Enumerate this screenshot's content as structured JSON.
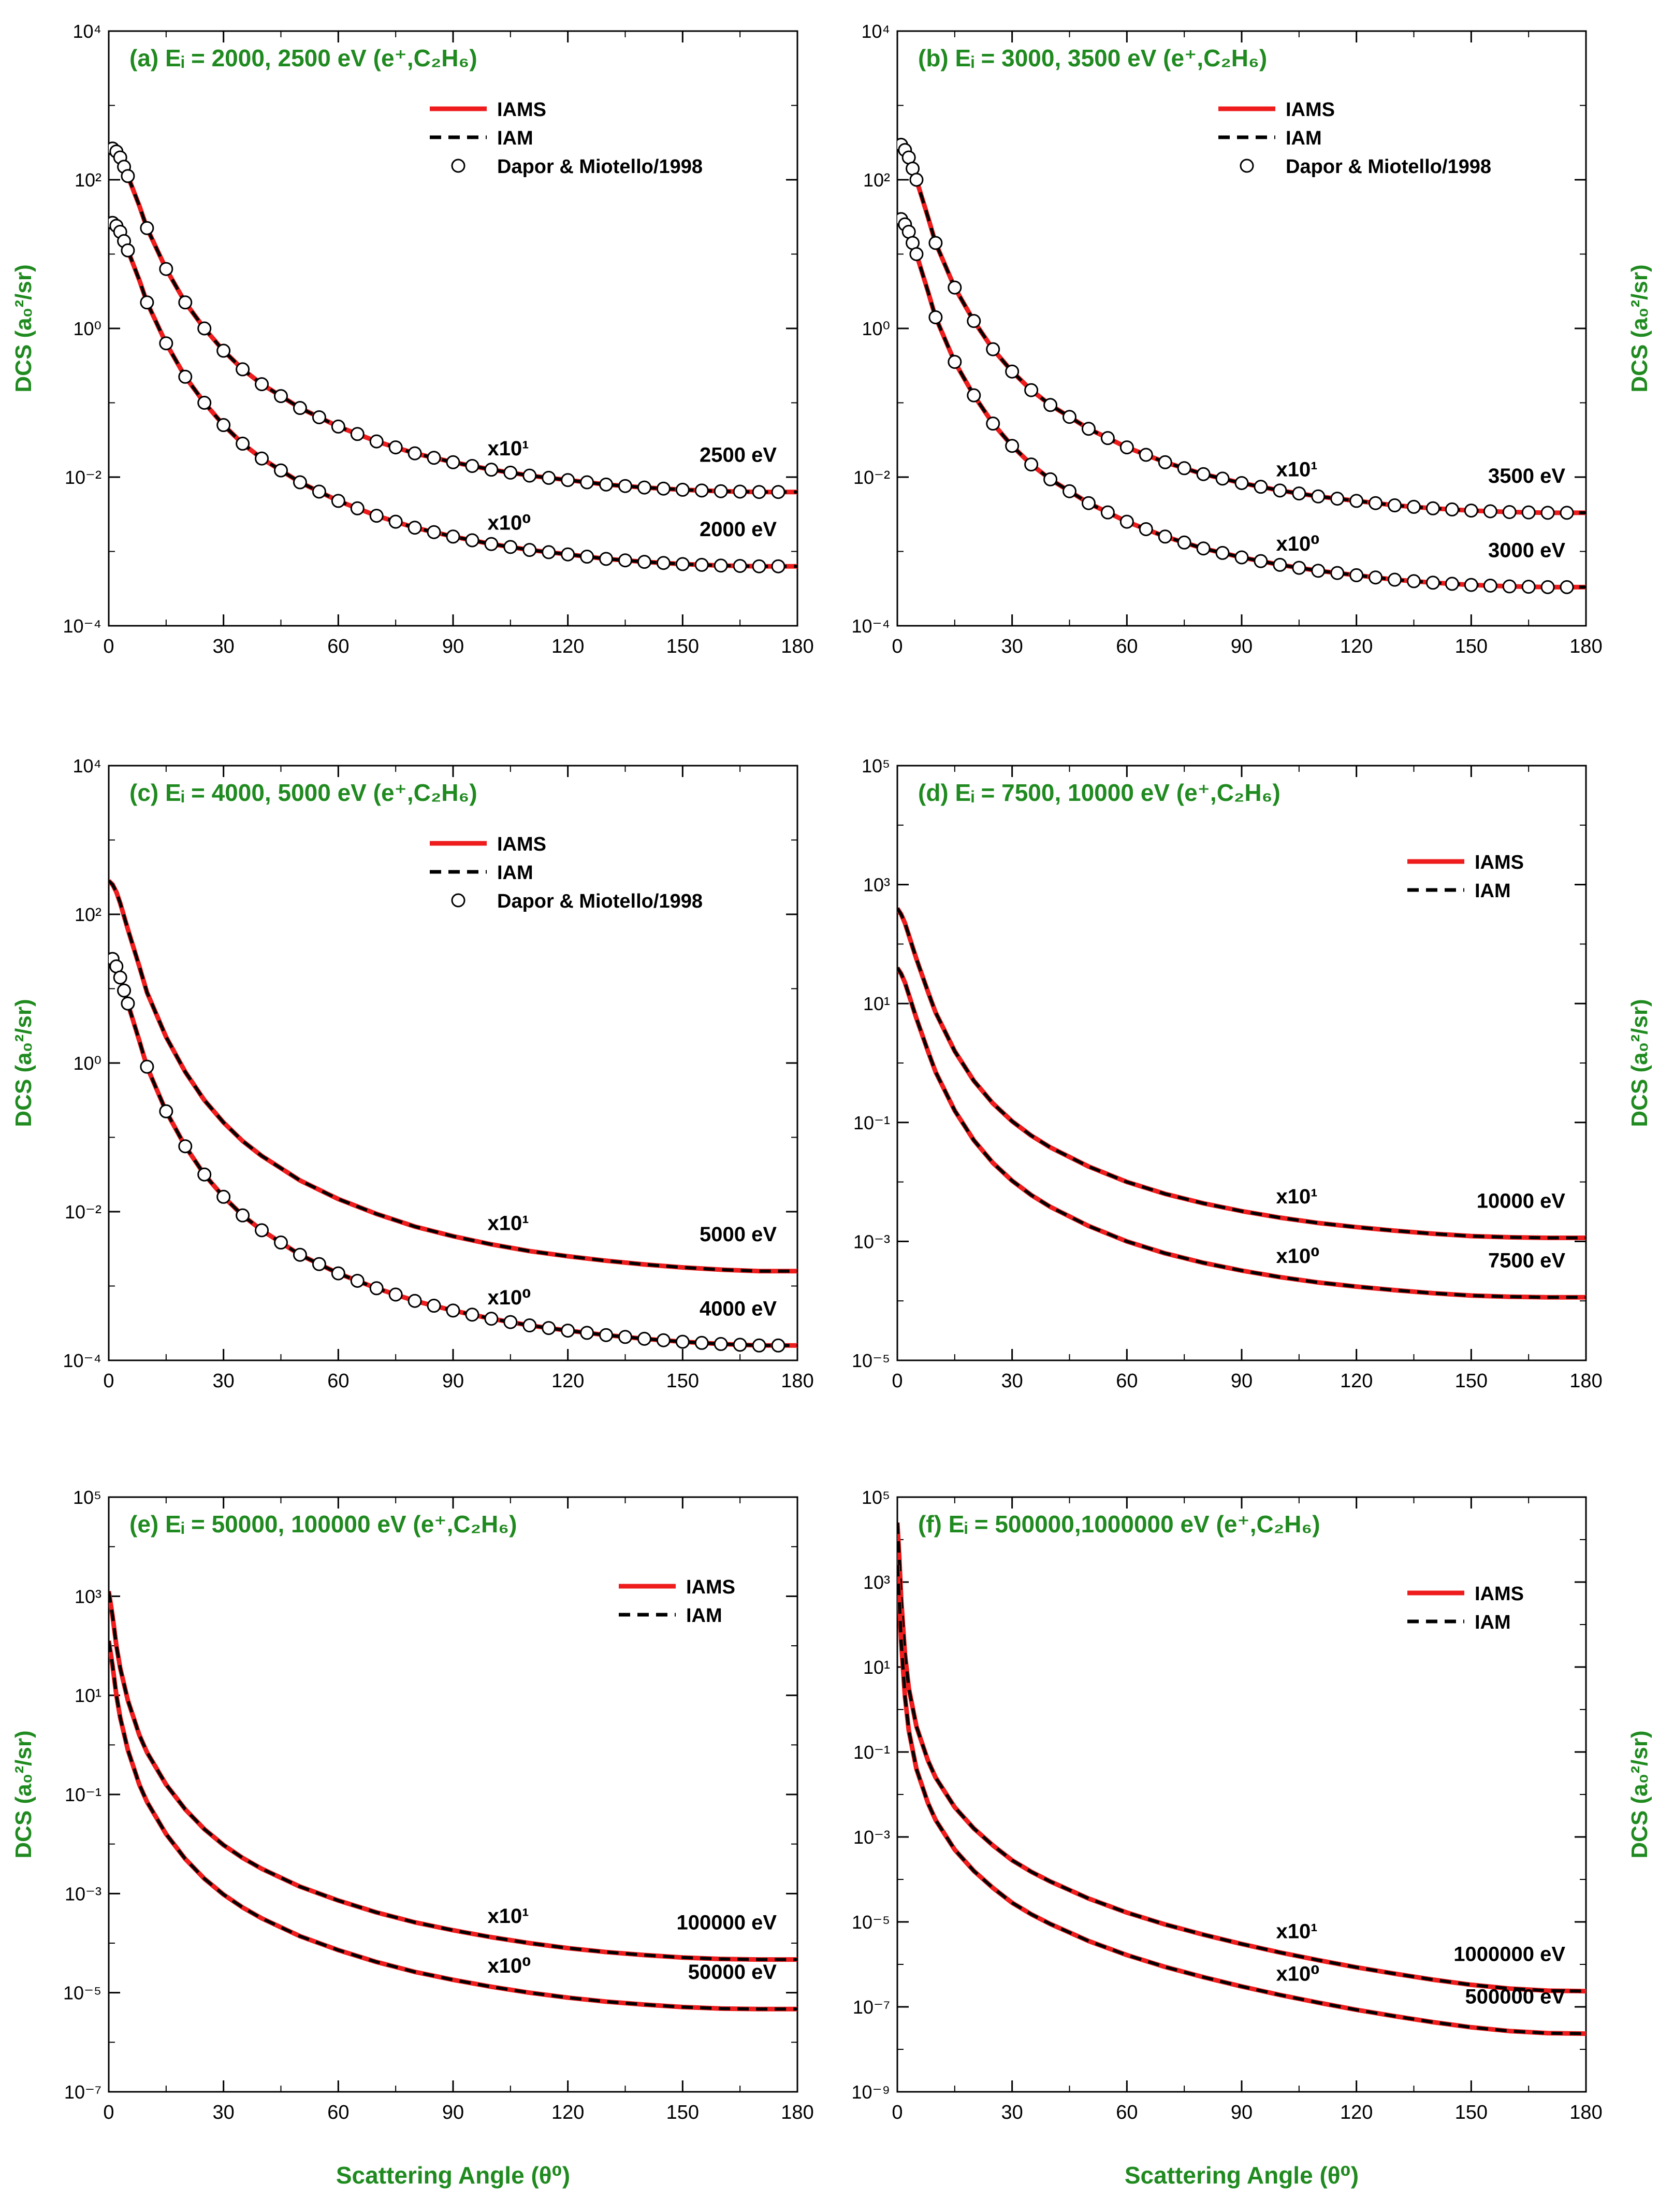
{
  "figure": {
    "common_ylabel": "DCS (a₀²/sr)",
    "common_xlabel": "Scattering Angle (θ⁰)",
    "colors": {
      "iams": "#ee1c1c",
      "iam": "#000000",
      "label_green": "#1f8a1f",
      "marker_fill": "#ffffff",
      "marker_stroke": "#000000"
    }
  },
  "chart_data": [
    {
      "type": "line",
      "title": "(a) Eᵢ = 2000, 2500 eV (e⁺,C₂H₆)",
      "xlabel": "",
      "ylabel": "DCS (a₀²/sr)",
      "xlim": [
        0,
        180
      ],
      "xticks": [
        0,
        30,
        60,
        90,
        120,
        150,
        180
      ],
      "ylim_log10": [
        -4,
        4
      ],
      "yticks_log10": [
        -4,
        -2,
        0,
        2,
        4
      ],
      "ytick_labels": [
        "10⁻⁴",
        "10⁻²",
        "10⁰",
        "10²",
        "10⁴"
      ],
      "legend": {
        "position": "top-center",
        "entries": [
          "IAMS",
          "IAM",
          "Dapor & Miotello/1998"
        ]
      },
      "series": [
        {
          "name": "2500 eV",
          "scale_label": "x10¹",
          "energy_label": "2500 eV",
          "data_marks": true,
          "x": [
            0,
            1,
            2,
            3,
            5,
            8,
            10,
            15,
            20,
            25,
            30,
            35,
            40,
            50,
            60,
            70,
            80,
            90,
            100,
            110,
            120,
            130,
            140,
            150,
            160,
            170,
            180
          ],
          "log10": [
            2.45,
            2.42,
            2.38,
            2.3,
            2.05,
            1.65,
            1.35,
            0.8,
            0.35,
            0.0,
            -0.3,
            -0.55,
            -0.75,
            -1.07,
            -1.32,
            -1.52,
            -1.68,
            -1.8,
            -1.9,
            -1.98,
            -2.04,
            -2.1,
            -2.14,
            -2.17,
            -2.19,
            -2.2,
            -2.2
          ]
        },
        {
          "name": "2000 eV",
          "scale_label": "x10⁰",
          "energy_label": "2000 eV",
          "data_marks": true,
          "x": [
            0,
            1,
            2,
            3,
            5,
            8,
            10,
            15,
            20,
            25,
            30,
            35,
            40,
            50,
            60,
            70,
            80,
            90,
            100,
            110,
            120,
            130,
            140,
            150,
            160,
            170,
            180
          ],
          "log10": [
            1.45,
            1.42,
            1.38,
            1.3,
            1.05,
            0.65,
            0.35,
            -0.2,
            -0.65,
            -1.0,
            -1.3,
            -1.55,
            -1.75,
            -2.07,
            -2.32,
            -2.52,
            -2.68,
            -2.8,
            -2.9,
            -2.98,
            -3.04,
            -3.1,
            -3.14,
            -3.17,
            -3.19,
            -3.2,
            -3.2
          ]
        }
      ]
    },
    {
      "type": "line",
      "title": "(b) Eᵢ = 3000, 3500 eV (e⁺,C₂H₆)",
      "xlabel": "",
      "ylabel": "DCS (a₀²/sr)",
      "xlim": [
        0,
        180
      ],
      "xticks": [
        0,
        30,
        60,
        90,
        120,
        150,
        180
      ],
      "ylim_log10": [
        -4,
        4
      ],
      "yticks_log10": [
        -4,
        -2,
        0,
        2,
        4
      ],
      "ytick_labels": [
        "10⁻⁴",
        "10⁻²",
        "10⁰",
        "10²",
        "10⁴"
      ],
      "legend": {
        "position": "top-center",
        "entries": [
          "IAMS",
          "IAM",
          "Dapor & Miotello/1998"
        ]
      },
      "series": [
        {
          "name": "3500 eV",
          "scale_label": "x10¹",
          "energy_label": "3500 eV",
          "data_marks": true,
          "x": [
            0,
            1,
            2,
            3,
            5,
            8,
            10,
            15,
            20,
            25,
            30,
            35,
            40,
            50,
            60,
            70,
            80,
            90,
            100,
            110,
            120,
            130,
            140,
            150,
            160,
            170,
            180
          ],
          "log10": [
            2.5,
            2.47,
            2.4,
            2.3,
            2.0,
            1.5,
            1.15,
            0.55,
            0.1,
            -0.28,
            -0.58,
            -0.83,
            -1.03,
            -1.35,
            -1.6,
            -1.8,
            -1.96,
            -2.08,
            -2.18,
            -2.26,
            -2.32,
            -2.38,
            -2.42,
            -2.45,
            -2.47,
            -2.48,
            -2.48
          ]
        },
        {
          "name": "3000 eV",
          "scale_label": "x10⁰",
          "energy_label": "3000 eV",
          "data_marks": true,
          "x": [
            0,
            1,
            2,
            3,
            5,
            8,
            10,
            15,
            20,
            25,
            30,
            35,
            40,
            50,
            60,
            70,
            80,
            90,
            100,
            110,
            120,
            130,
            140,
            150,
            160,
            170,
            180
          ],
          "log10": [
            1.5,
            1.47,
            1.4,
            1.3,
            1.0,
            0.5,
            0.15,
            -0.45,
            -0.9,
            -1.28,
            -1.58,
            -1.83,
            -2.03,
            -2.35,
            -2.6,
            -2.8,
            -2.96,
            -3.08,
            -3.18,
            -3.26,
            -3.32,
            -3.38,
            -3.42,
            -3.45,
            -3.47,
            -3.48,
            -3.48
          ]
        }
      ]
    },
    {
      "type": "line",
      "title": "(c) Eᵢ = 4000, 5000 eV (e⁺,C₂H₆)",
      "xlabel": "",
      "ylabel": "DCS (a₀²/sr)",
      "xlim": [
        0,
        180
      ],
      "xticks": [
        0,
        30,
        60,
        90,
        120,
        150,
        180
      ],
      "ylim_log10": [
        -4,
        4
      ],
      "yticks_log10": [
        -4,
        -2,
        0,
        2,
        4
      ],
      "ytick_labels": [
        "10⁻⁴",
        "10⁻²",
        "10⁰",
        "10²",
        "10⁴"
      ],
      "legend": {
        "position": "top-center",
        "entries": [
          "IAMS",
          "IAM",
          "Dapor & Miotello/1998"
        ]
      },
      "series": [
        {
          "name": "5000 eV",
          "scale_label": "x10¹",
          "energy_label": "5000 eV",
          "data_marks": false,
          "x": [
            0,
            1,
            2,
            3,
            5,
            8,
            10,
            15,
            20,
            25,
            30,
            35,
            40,
            50,
            60,
            70,
            80,
            90,
            100,
            110,
            120,
            130,
            140,
            150,
            160,
            170,
            180
          ],
          "log10": [
            2.45,
            2.4,
            2.3,
            2.15,
            1.8,
            1.3,
            0.95,
            0.35,
            -0.12,
            -0.5,
            -0.8,
            -1.05,
            -1.25,
            -1.58,
            -1.83,
            -2.03,
            -2.2,
            -2.33,
            -2.44,
            -2.53,
            -2.6,
            -2.66,
            -2.71,
            -2.75,
            -2.78,
            -2.8,
            -2.8
          ]
        },
        {
          "name": "4000 eV",
          "scale_label": "x10⁰",
          "energy_label": "4000 eV",
          "data_marks": true,
          "x": [
            0,
            1,
            2,
            3,
            5,
            8,
            10,
            15,
            20,
            25,
            30,
            35,
            40,
            50,
            60,
            70,
            80,
            90,
            100,
            110,
            120,
            130,
            140,
            150,
            160,
            170,
            180
          ],
          "log10": [
            1.45,
            1.4,
            1.3,
            1.15,
            0.8,
            0.3,
            -0.05,
            -0.65,
            -1.12,
            -1.5,
            -1.8,
            -2.05,
            -2.25,
            -2.58,
            -2.83,
            -3.03,
            -3.2,
            -3.33,
            -3.44,
            -3.53,
            -3.6,
            -3.66,
            -3.71,
            -3.75,
            -3.78,
            -3.8,
            -3.8
          ]
        }
      ]
    },
    {
      "type": "line",
      "title": "(d) Eᵢ = 7500, 10000 eV (e⁺,C₂H₆)",
      "xlabel": "",
      "ylabel": "DCS (a₀²/sr)",
      "xlim": [
        0,
        180
      ],
      "xticks": [
        0,
        30,
        60,
        90,
        120,
        150,
        180
      ],
      "ylim_log10": [
        -5,
        5
      ],
      "yticks_log10": [
        -5,
        -3,
        -1,
        1,
        3,
        5
      ],
      "ytick_labels": [
        "10⁻⁵",
        "10⁻³",
        "10⁻¹",
        "10¹",
        "10³",
        "10⁵"
      ],
      "legend": {
        "position": "top-right",
        "entries": [
          "IAMS",
          "IAM"
        ]
      },
      "series": [
        {
          "name": "10000 eV",
          "scale_label": "x10¹",
          "energy_label": "10000 eV",
          "data_marks": false,
          "x": [
            0,
            1,
            2,
            3,
            5,
            8,
            10,
            15,
            20,
            25,
            30,
            35,
            40,
            50,
            60,
            70,
            80,
            90,
            100,
            110,
            120,
            130,
            140,
            150,
            160,
            170,
            180
          ],
          "log10": [
            2.6,
            2.5,
            2.35,
            2.15,
            1.75,
            1.2,
            0.85,
            0.2,
            -0.3,
            -0.68,
            -0.98,
            -1.22,
            -1.42,
            -1.74,
            -2.0,
            -2.2,
            -2.36,
            -2.49,
            -2.6,
            -2.69,
            -2.76,
            -2.82,
            -2.87,
            -2.91,
            -2.93,
            -2.94,
            -2.94
          ]
        },
        {
          "name": "7500 eV",
          "scale_label": "x10⁰",
          "energy_label": "7500 eV",
          "data_marks": false,
          "x": [
            0,
            1,
            2,
            3,
            5,
            8,
            10,
            15,
            20,
            25,
            30,
            35,
            40,
            50,
            60,
            70,
            80,
            90,
            100,
            110,
            120,
            130,
            140,
            150,
            160,
            170,
            180
          ],
          "log10": [
            1.6,
            1.5,
            1.35,
            1.15,
            0.75,
            0.2,
            -0.15,
            -0.8,
            -1.3,
            -1.68,
            -1.98,
            -2.22,
            -2.42,
            -2.74,
            -3.0,
            -3.2,
            -3.36,
            -3.49,
            -3.6,
            -3.69,
            -3.76,
            -3.82,
            -3.87,
            -3.91,
            -3.93,
            -3.94,
            -3.94
          ]
        }
      ]
    },
    {
      "type": "line",
      "title": "(e) Eᵢ = 50000, 100000 eV (e⁺,C₂H₆)",
      "xlabel": "Scattering Angle (θ⁰)",
      "ylabel": "DCS (a₀²/sr)",
      "xlim": [
        0,
        180
      ],
      "xticks": [
        0,
        30,
        60,
        90,
        120,
        150,
        180
      ],
      "ylim_log10": [
        -7,
        5
      ],
      "yticks_log10": [
        -7,
        -5,
        -3,
        -1,
        1,
        3,
        5
      ],
      "ytick_labels": [
        "10⁻⁷",
        "10⁻⁵",
        "10⁻³",
        "10⁻¹",
        "10¹",
        "10³",
        "10⁵"
      ],
      "legend": {
        "position": "top-right",
        "entries": [
          "IAMS",
          "IAM"
        ]
      },
      "series": [
        {
          "name": "100000 eV",
          "scale_label": "x10¹",
          "energy_label": "100000 eV",
          "data_marks": false,
          "x": [
            0,
            1,
            2,
            3,
            5,
            8,
            10,
            15,
            20,
            25,
            30,
            35,
            40,
            50,
            60,
            70,
            80,
            90,
            100,
            110,
            120,
            130,
            140,
            150,
            160,
            170,
            180
          ],
          "log10": [
            3.1,
            2.6,
            2.0,
            1.55,
            0.9,
            0.2,
            -0.15,
            -0.8,
            -1.3,
            -1.7,
            -2.02,
            -2.28,
            -2.5,
            -2.86,
            -3.14,
            -3.38,
            -3.58,
            -3.74,
            -3.88,
            -4.0,
            -4.1,
            -4.18,
            -4.24,
            -4.29,
            -4.32,
            -4.33,
            -4.33
          ]
        },
        {
          "name": "50000 eV",
          "scale_label": "x10⁰",
          "energy_label": "50000 eV",
          "data_marks": false,
          "x": [
            0,
            1,
            2,
            3,
            5,
            8,
            10,
            15,
            20,
            25,
            30,
            35,
            40,
            50,
            60,
            70,
            80,
            90,
            100,
            110,
            120,
            130,
            140,
            150,
            160,
            170,
            180
          ],
          "log10": [
            2.1,
            1.6,
            1.0,
            0.55,
            -0.1,
            -0.8,
            -1.15,
            -1.8,
            -2.3,
            -2.7,
            -3.02,
            -3.28,
            -3.5,
            -3.86,
            -4.14,
            -4.38,
            -4.58,
            -4.74,
            -4.88,
            -5.0,
            -5.1,
            -5.18,
            -5.24,
            -5.29,
            -5.32,
            -5.33,
            -5.33
          ]
        }
      ]
    },
    {
      "type": "line",
      "title": "(f) Eᵢ = 500000,1000000 eV (e⁺,C₂H₆)",
      "xlabel": "Scattering Angle (θ⁰)",
      "ylabel": "DCS (a₀²/sr)",
      "xlim": [
        0,
        180
      ],
      "xticks": [
        0,
        30,
        60,
        90,
        120,
        150,
        180
      ],
      "ylim_log10": [
        -9,
        5
      ],
      "yticks_log10": [
        -9,
        -7,
        -5,
        -3,
        -1,
        1,
        3,
        5
      ],
      "ytick_labels": [
        "10⁻⁹",
        "10⁻⁷",
        "10⁻⁵",
        "10⁻³",
        "10⁻¹",
        "10¹",
        "10³",
        "10⁵"
      ],
      "legend": {
        "position": "top-right",
        "entries": [
          "IAMS",
          "IAM"
        ]
      },
      "series": [
        {
          "name": "1000000 eV",
          "scale_label": "x10¹",
          "energy_label": "1000000 eV",
          "data_marks": false,
          "x": [
            0,
            0.5,
            1,
            2,
            3,
            5,
            8,
            10,
            15,
            20,
            25,
            30,
            35,
            40,
            50,
            60,
            70,
            80,
            90,
            100,
            110,
            120,
            130,
            140,
            150,
            160,
            170,
            180
          ],
          "log10": [
            4.4,
            3.6,
            2.6,
            1.3,
            0.5,
            -0.4,
            -1.2,
            -1.6,
            -2.3,
            -2.8,
            -3.2,
            -3.55,
            -3.82,
            -4.05,
            -4.45,
            -4.78,
            -5.06,
            -5.3,
            -5.52,
            -5.72,
            -5.9,
            -6.07,
            -6.22,
            -6.36,
            -6.48,
            -6.57,
            -6.62,
            -6.63
          ]
        },
        {
          "name": "500000 eV",
          "scale_label": "x10⁰",
          "energy_label": "500000 eV",
          "data_marks": false,
          "x": [
            0,
            0.5,
            1,
            2,
            3,
            5,
            8,
            10,
            15,
            20,
            25,
            30,
            35,
            40,
            50,
            60,
            70,
            80,
            90,
            100,
            110,
            120,
            130,
            140,
            150,
            160,
            170,
            180
          ],
          "log10": [
            3.4,
            2.6,
            1.6,
            0.3,
            -0.5,
            -1.4,
            -2.2,
            -2.6,
            -3.3,
            -3.8,
            -4.2,
            -4.55,
            -4.82,
            -5.05,
            -5.45,
            -5.78,
            -6.06,
            -6.3,
            -6.52,
            -6.72,
            -6.9,
            -7.07,
            -7.22,
            -7.36,
            -7.48,
            -7.57,
            -7.62,
            -7.63
          ]
        }
      ]
    }
  ]
}
